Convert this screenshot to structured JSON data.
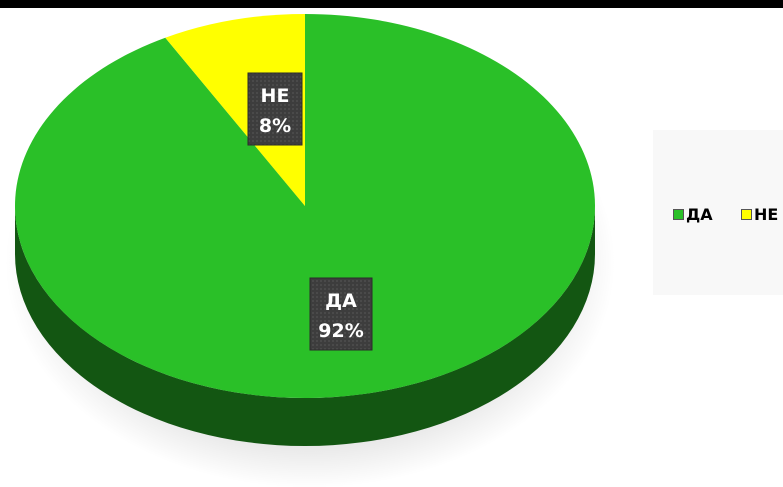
{
  "chart_data": {
    "type": "pie",
    "style": "3d",
    "categories": [
      "ДА",
      "НЕ"
    ],
    "values": [
      92,
      8
    ],
    "unit": "%",
    "data_labels": [
      {
        "category": "ДА",
        "value": "92%"
      },
      {
        "category": "НЕ",
        "value": "8%"
      }
    ],
    "colors": [
      "#2ac028",
      "#ffff00"
    ],
    "legend_position": "right",
    "legend": [
      {
        "label": "ДА",
        "color": "#2ac028"
      },
      {
        "label": "НЕ",
        "color": "#ffff00"
      }
    ]
  }
}
